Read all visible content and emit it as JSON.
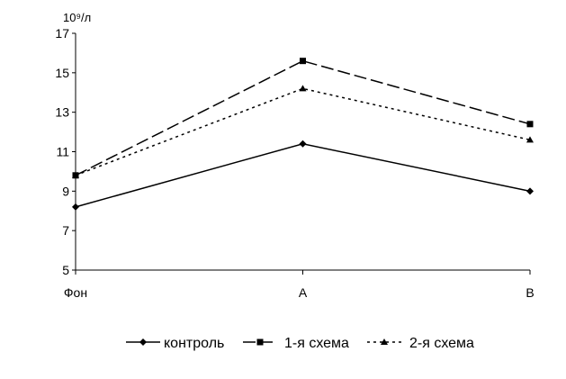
{
  "chart_data": {
    "type": "line",
    "y_unit_label": "10⁹/л",
    "categories": [
      "Фон",
      "A",
      "B"
    ],
    "ylim": [
      5,
      17
    ],
    "yticks": [
      5,
      7,
      9,
      11,
      13,
      15,
      17
    ],
    "grid": false,
    "legend_position": "bottom",
    "series": [
      {
        "name": "контроль",
        "values": [
          8.2,
          11.4,
          9.0
        ],
        "marker": "diamond",
        "dash": "solid",
        "color": "#000000"
      },
      {
        "name": "1-я схема",
        "values": [
          9.8,
          15.6,
          12.4
        ],
        "marker": "square",
        "dash": "long-dash",
        "color": "#000000"
      },
      {
        "name": "2-я схема",
        "values": [
          9.8,
          14.2,
          11.6
        ],
        "marker": "triangle",
        "dash": "dotted",
        "color": "#000000"
      }
    ]
  }
}
